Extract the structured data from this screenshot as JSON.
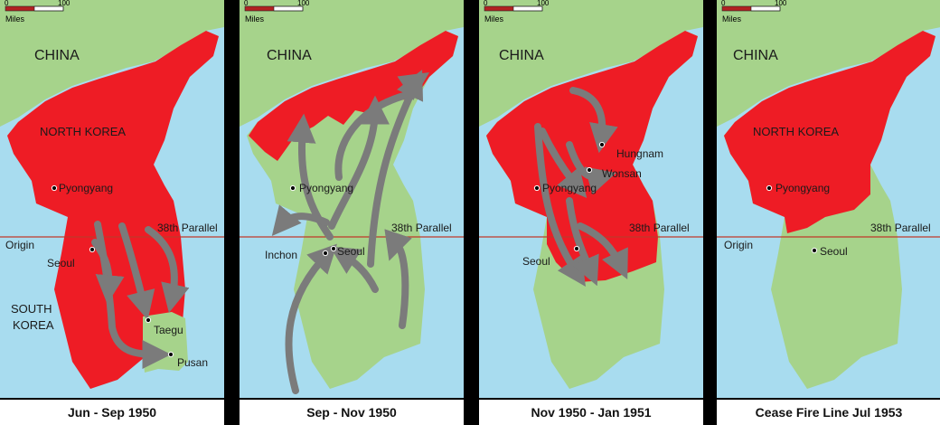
{
  "scale_bar": {
    "start": "0",
    "end": "100",
    "unit": "Miles"
  },
  "colors": {
    "sea": "#a8dcef",
    "china": "#a6d38b",
    "north_held": "#ee1c25",
    "south_held": "#a6d38b",
    "arrow": "#7b7b7b",
    "parallel": "#c0392b"
  },
  "panels": [
    {
      "caption": "Jun - Sep 1950",
      "labels": {
        "china": "CHINA",
        "north_korea": "NORTH KOREA",
        "south_korea_1": "SOUTH",
        "south_korea_2": "KOREA",
        "parallel": "38th Parallel",
        "origin": "Origin"
      },
      "cities": {
        "pyongyang": "Pyongyang",
        "seoul": "Seoul",
        "taegu": "Taegu",
        "pusan": "Pusan"
      }
    },
    {
      "caption": "Sep - Nov 1950",
      "labels": {
        "china": "CHINA",
        "parallel": "38th Parallel"
      },
      "cities": {
        "pyongyang": "Pyongyang",
        "inchon": "Inchon",
        "seoul": "Seoul"
      }
    },
    {
      "caption": "Nov 1950 - Jan 1951",
      "labels": {
        "china": "CHINA",
        "parallel": "38th Parallel"
      },
      "cities": {
        "hungnam": "Hungnam",
        "wonsan": "Wonsan",
        "pyongyang": "Pyongyang",
        "seoul": "Seoul"
      }
    },
    {
      "caption": "Cease Fire Line Jul 1953",
      "labels": {
        "china": "CHINA",
        "north_korea": "NORTH KOREA",
        "parallel": "38th Parallel",
        "origin": "Origin"
      },
      "cities": {
        "pyongyang": "Pyongyang",
        "seoul": "Seoul"
      }
    }
  ]
}
